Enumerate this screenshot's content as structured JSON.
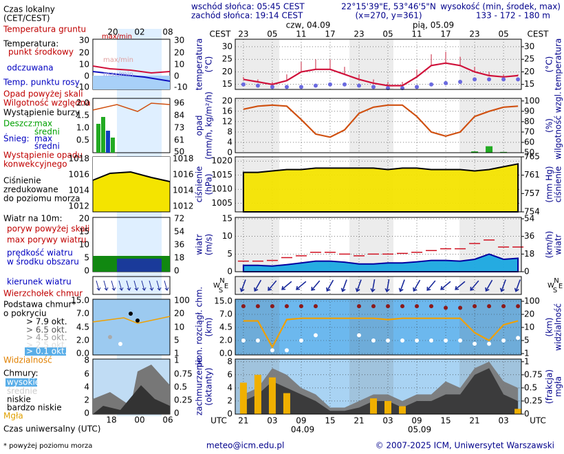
{
  "header": {
    "sunrise": "wschód słońca: 05:45 CEST",
    "sunset": "zachód słońca: 19:14 CEST",
    "coords": "22°15'39\"E, 53°46'5\"N",
    "grid_point": "(x=270, y=361)",
    "elevation_label": "wysokość (min, środek, max)",
    "elevation": "133 - 172 - 180 m"
  },
  "time_axis": {
    "xlim": [
      19.3,
      78.7
    ],
    "local_label": "CEST",
    "utc_label": "UTC",
    "ticks_local": [
      {
        "value": 21,
        "label": "23"
      },
      {
        "value": 27,
        "label": "05"
      },
      {
        "value": 33,
        "label": "11"
      },
      {
        "value": 39,
        "label": "17"
      },
      {
        "value": 45,
        "label": "23"
      },
      {
        "value": 51,
        "label": "05"
      },
      {
        "value": 57,
        "label": "11"
      },
      {
        "value": 63,
        "label": "17"
      },
      {
        "value": 69,
        "label": "23"
      },
      {
        "value": 75,
        "label": "05"
      }
    ],
    "ticks_utc": [
      21,
      {
        "value": 27,
        "label": "03"
      },
      {
        "value": 33,
        "label": "09"
      },
      {
        "value": 39,
        "label": "15"
      },
      {
        "value": 45,
        "label": "21"
      },
      {
        "value": 51,
        "label": "03"
      },
      {
        "value": 57,
        "label": "09"
      },
      {
        "value": 63,
        "label": "15"
      },
      {
        "value": 69,
        "label": "21"
      },
      {
        "value": 75,
        "label": "03"
      }
    ],
    "dates_local": [
      "czw, 04.09",
      "pią, 05.09"
    ],
    "dates_utc": [
      "04.09",
      "05.09"
    ]
  },
  "chart_data": [
    {
      "type": "line",
      "ylabel": "temperatura",
      "yunit": "(°C)",
      "y2label": "temperatura",
      "y2unit": "(°C)",
      "x": [
        21,
        24,
        27,
        30,
        33,
        36,
        39,
        42,
        45,
        48,
        51,
        54,
        57,
        60,
        63,
        66,
        69,
        72,
        75,
        78
      ],
      "ylim": [
        13,
        33
      ],
      "yticks": [
        15,
        20,
        25,
        30
      ],
      "y2lim": [
        13,
        33
      ],
      "y2ticks": [
        15,
        20,
        25,
        30
      ],
      "series": [
        {
          "name": "punkt środkowy",
          "type": "line",
          "color": "#d0103a",
          "values": [
            17,
            16,
            15,
            16.5,
            20,
            21,
            21,
            19,
            17,
            15.5,
            14.5,
            14.5,
            18,
            22.5,
            23.5,
            22.5,
            20,
            18.5,
            18,
            18.5
          ]
        },
        {
          "name": "max/min",
          "type": "whisker",
          "color": "#c8203c",
          "values": [
            18,
            17,
            16,
            19,
            24,
            25,
            25,
            22,
            19,
            17,
            16,
            16,
            21,
            27,
            28,
            26,
            22,
            20,
            19,
            19
          ]
        },
        {
          "name": "Temp. punktu rosy",
          "type": "dots",
          "color": "#6a6ae0",
          "values": [
            15,
            14.5,
            14,
            14,
            14,
            14.5,
            15,
            15,
            14.5,
            14,
            13.5,
            13.5,
            14,
            15,
            15.5,
            16,
            17,
            17,
            17,
            17
          ]
        }
      ]
    },
    {
      "type": "line",
      "ylabel": "opad",
      "yunit": "(mm/h, kg/m²/h)",
      "y2label": "wilgotność wzgl.",
      "y2unit": "(%)",
      "x": [
        21,
        24,
        27,
        30,
        33,
        36,
        39,
        42,
        45,
        48,
        51,
        54,
        57,
        60,
        63,
        66,
        69,
        72,
        75,
        78
      ],
      "ylim": [
        0,
        21
      ],
      "yticks": [
        0,
        4,
        8,
        12,
        16,
        20
      ],
      "y2lim": [
        50,
        102.5
      ],
      "y2ticks": [
        50,
        60,
        70,
        80,
        90,
        100
      ],
      "series": [
        {
          "name": "Wilgotność względna",
          "type": "line",
          "axis": "y2",
          "color": "#d05010",
          "values": [
            92,
            95,
            96,
            95,
            82,
            68,
            65,
            72,
            88,
            94,
            96,
            96,
            85,
            70,
            66,
            70,
            85,
            90,
            94,
            95
          ]
        },
        {
          "name": "średni",
          "type": "bar",
          "color": "#22aa22",
          "values": [
            0,
            0,
            0,
            0,
            0,
            0,
            0,
            0,
            0,
            0,
            0,
            0,
            0,
            0,
            0,
            0,
            0.5,
            2.5,
            0.3,
            0
          ]
        }
      ]
    },
    {
      "type": "line",
      "ylabel": "ciśnienie",
      "yunit": "(hPa)",
      "y2label": "ciśnienie",
      "y2unit": "(mm Hg)",
      "x": [
        21,
        24,
        27,
        30,
        33,
        36,
        39,
        42,
        45,
        48,
        51,
        54,
        57,
        60,
        63,
        66,
        69,
        72,
        75,
        78
      ],
      "ylim": [
        1002,
        1021.5
      ],
      "yticks": [
        1005,
        1010,
        1015,
        1020
      ],
      "y2lim": [
        751.9,
        766.1
      ],
      "y2ticks": [
        754,
        757,
        761,
        765
      ],
      "series": [
        {
          "name": "Ciśnienie",
          "type": "area",
          "color": "#f4e400",
          "edge": "#000000",
          "values": [
            1016,
            1016,
            1016.5,
            1017,
            1017,
            1017.5,
            1017.5,
            1017.5,
            1017.5,
            1017.5,
            1017,
            1017.5,
            1017.5,
            1017,
            1017,
            1017,
            1016.5,
            1017,
            1018,
            1019
          ]
        }
      ]
    },
    {
      "type": "line",
      "ylabel": "wiatr",
      "yunit": "(m/s)",
      "y2label": "wiatr",
      "y2unit": "(km/h)",
      "x": [
        21,
        24,
        27,
        30,
        33,
        36,
        39,
        42,
        45,
        48,
        51,
        54,
        57,
        60,
        63,
        66,
        69,
        72,
        75,
        78
      ],
      "ylim": [
        0,
        15.4
      ],
      "yticks": [
        0,
        5,
        10,
        15
      ],
      "y2lim": [
        0,
        55.44
      ],
      "y2ticks": [
        0,
        18,
        36,
        54
      ],
      "series": [
        {
          "name": "prędkość wiatru",
          "type": "area",
          "color": "#1aa8e0",
          "edge": "#0000a0",
          "values": [
            1.8,
            1.8,
            1.6,
            2,
            2.5,
            3,
            3,
            2.7,
            2.2,
            2.2,
            2.5,
            2.5,
            2.8,
            3.2,
            3.2,
            3,
            3.5,
            5,
            3.5,
            3.8
          ]
        },
        {
          "name": "max porywy wiatru",
          "type": "dash",
          "color": "#d01020",
          "values": [
            3,
            3,
            3.2,
            4,
            4.5,
            5.5,
            5.5,
            5,
            4.5,
            5,
            5,
            5.2,
            5.5,
            6,
            6.5,
            6.5,
            8,
            9,
            7,
            7
          ]
        }
      ]
    },
    {
      "type": "vector",
      "compass": [
        "N",
        "W",
        "E",
        "S"
      ],
      "x": [
        21,
        24,
        27,
        30,
        33,
        36,
        39,
        42,
        45,
        48,
        51,
        54,
        57,
        60,
        63,
        66,
        69,
        72,
        75,
        78
      ],
      "series": [
        {
          "name": "kierunek wiatru",
          "type": "arrow",
          "color": "#1a2a9a",
          "values": [
            200,
            210,
            220,
            230,
            230,
            220,
            210,
            200,
            200,
            190,
            190,
            200,
            210,
            220,
            230,
            230,
            220,
            210,
            200,
            200
          ]
        }
      ]
    },
    {
      "type": "line",
      "ylabel": "pion. rozciągł. chm.",
      "yunit": "(km)",
      "y2label": "widzialność",
      "y2unit": "(km)",
      "x": [
        21,
        24,
        27,
        30,
        33,
        36,
        39,
        42,
        45,
        48,
        51,
        54,
        57,
        60,
        63,
        66,
        69,
        72,
        75,
        78
      ],
      "ylim": [
        0,
        15
      ],
      "yticks": [
        {
          "value": 0,
          "label": "0.0"
        },
        {
          "value": 2,
          "label": "2.0"
        },
        4.5,
        {
          "value": 7,
          "label": "7.0"
        },
        {
          "value": 15,
          "label": "15.0"
        }
      ],
      "y2lim": [
        1,
        100
      ],
      "y2ticks": [
        1,
        5,
        10,
        20,
        100
      ],
      "series": [
        {
          "name": "Wierzchołek chmur",
          "type": "dots",
          "color": "#8b1a1a",
          "values": [
            12,
            12,
            12,
            12,
            12,
            12,
            null,
            null,
            12,
            12,
            12,
            12,
            12,
            12,
            11,
            11,
            12,
            12,
            12,
            12
          ]
        },
        {
          "name": "> 0.1 okt.",
          "type": "dots",
          "color": "#ffffff",
          "values": [
            2,
            2,
            0.5,
            0.5,
            2,
            3,
            null,
            null,
            3,
            2,
            2,
            2,
            2,
            2,
            2,
            2,
            1.5,
            1.5,
            2,
            2.5
          ]
        },
        {
          "name": "Widzialność",
          "type": "line",
          "axis": "y2",
          "color": "#f0a000",
          "values": [
            15,
            15,
            3,
            16,
            17,
            17,
            17,
            17,
            17,
            17,
            16,
            17,
            17,
            17,
            17,
            17,
            8,
            5,
            12,
            15
          ]
        }
      ]
    },
    {
      "type": "line",
      "ylabel": "zachmurzenie",
      "yunit": "(oktanty)",
      "y2label": "mgła",
      "y2unit": "(frakcja)",
      "x": [
        21,
        24,
        27,
        30,
        33,
        36,
        39,
        42,
        45,
        48,
        51,
        54,
        57,
        60,
        63,
        66,
        69,
        72,
        75,
        78
      ],
      "ylim": [
        0,
        8.4
      ],
      "yticks": [
        0,
        2,
        4,
        6,
        8
      ],
      "y2lim": [
        0,
        1.05
      ],
      "y2ticks": [
        0,
        0.25,
        0.5,
        0.75,
        1
      ],
      "series": [
        {
          "name": "niskie",
          "type": "area",
          "color": "#7a7a7a",
          "values": [
            3,
            4,
            7,
            6,
            4,
            3,
            1,
            1,
            2,
            3,
            3,
            2,
            3,
            3,
            5,
            4,
            7,
            8,
            5,
            4
          ]
        },
        {
          "name": "bardzo niskie",
          "type": "area",
          "color": "#383838",
          "values": [
            2,
            3,
            5,
            4,
            3,
            2,
            0.5,
            0.5,
            1,
            2,
            2,
            1,
            2,
            2,
            3,
            3,
            6,
            7,
            3,
            2
          ]
        },
        {
          "name": "Mgła",
          "type": "bar",
          "axis": "y2",
          "color": "#f0b000",
          "values": [
            0.6,
            0.75,
            0.7,
            0.4,
            0,
            0,
            0,
            0,
            0,
            0.3,
            0.25,
            0.15,
            0,
            0,
            0,
            0,
            0,
            0,
            0,
            0.1
          ]
        }
      ]
    }
  ],
  "legend": {
    "local_time": [
      "Czas lokalny",
      "(CET/CEST)"
    ],
    "local_ticks": [
      20,
      {
        "value": 2,
        "label": "02"
      },
      {
        "value": 8,
        "label": "08"
      }
    ],
    "ground": "Temperatura gruntu",
    "ground_minmax": "max/min",
    "temperature": "Temperatura:",
    "apparent": "odczuwana",
    "apparent_minmax": "max/min",
    "temp_ticks": [
      30,
      20,
      10,
      0,
      -10
    ],
    "precip_over": "Opad powyżej skali",
    "storm": "Wystąpienie burzy",
    "rain": "Deszcz:",
    "rain_max": "max",
    "snow": "Śnieg:",
    "snow_max": "max",
    "snow_mean": "średni",
    "convective": [
      "Wystąpienie opadu",
      "konwekcyjnego"
    ],
    "precip_ticks": [
      {
        "value": 2,
        "label": "2.0"
      },
      1.5,
      {
        "value": 1,
        "label": "1.0"
      },
      0.5
    ],
    "humidity_ticks": [
      96,
      84,
      73,
      61,
      50
    ],
    "pressure_note": [
      "zredukowane",
      "do poziomu morza"
    ],
    "pressure_ticks": [
      1018,
      1016,
      1014,
      1012
    ],
    "wind": "Wiatr na 10m:",
    "gust_over": "poryw powyżej skali",
    "wind_mid": "w środku obszaru",
    "wind_ticks": [
      20,
      15,
      10,
      5,
      0
    ],
    "wind_kmh_ticks": [
      72,
      54,
      36,
      18,
      0
    ],
    "cloud_base": "Podstawa chmur*",
    "coverage": "o pokryciu",
    "okt": [
      "> 7.9 okt.",
      "> 6.5 okt.",
      "> 4.5 okt.",
      "> 2.5 okt."
    ],
    "cloud_ticks": [
      {
        "value": 15,
        "label": "15.0"
      },
      {
        "value": 7,
        "label": "7.0"
      },
      4.5,
      {
        "value": 2,
        "label": "2.0"
      },
      {
        "value": 0,
        "label": "0.0"
      }
    ],
    "vis_ticks": [
      100,
      20,
      10,
      5,
      1
    ],
    "clouds": "Chmury:",
    "high": "wysokie",
    "mid": "średnie",
    "cover_ticks": [
      8,
      6,
      4,
      2,
      0
    ],
    "fog_ticks": [
      1,
      0.75,
      0.5,
      0.25,
      0
    ],
    "utc_ticks": [
      18,
      {
        "value": 0,
        "label": "00"
      },
      {
        "value": 6,
        "label": "06"
      }
    ],
    "utc": "Czas uniwersalny (UTC)"
  },
  "footer": {
    "note": "* powyżej poziomu morza",
    "email": "meteo@icm.edu.pl",
    "copyright": "© 2007-2025 ICM, Uniwersytet Warszawski"
  }
}
